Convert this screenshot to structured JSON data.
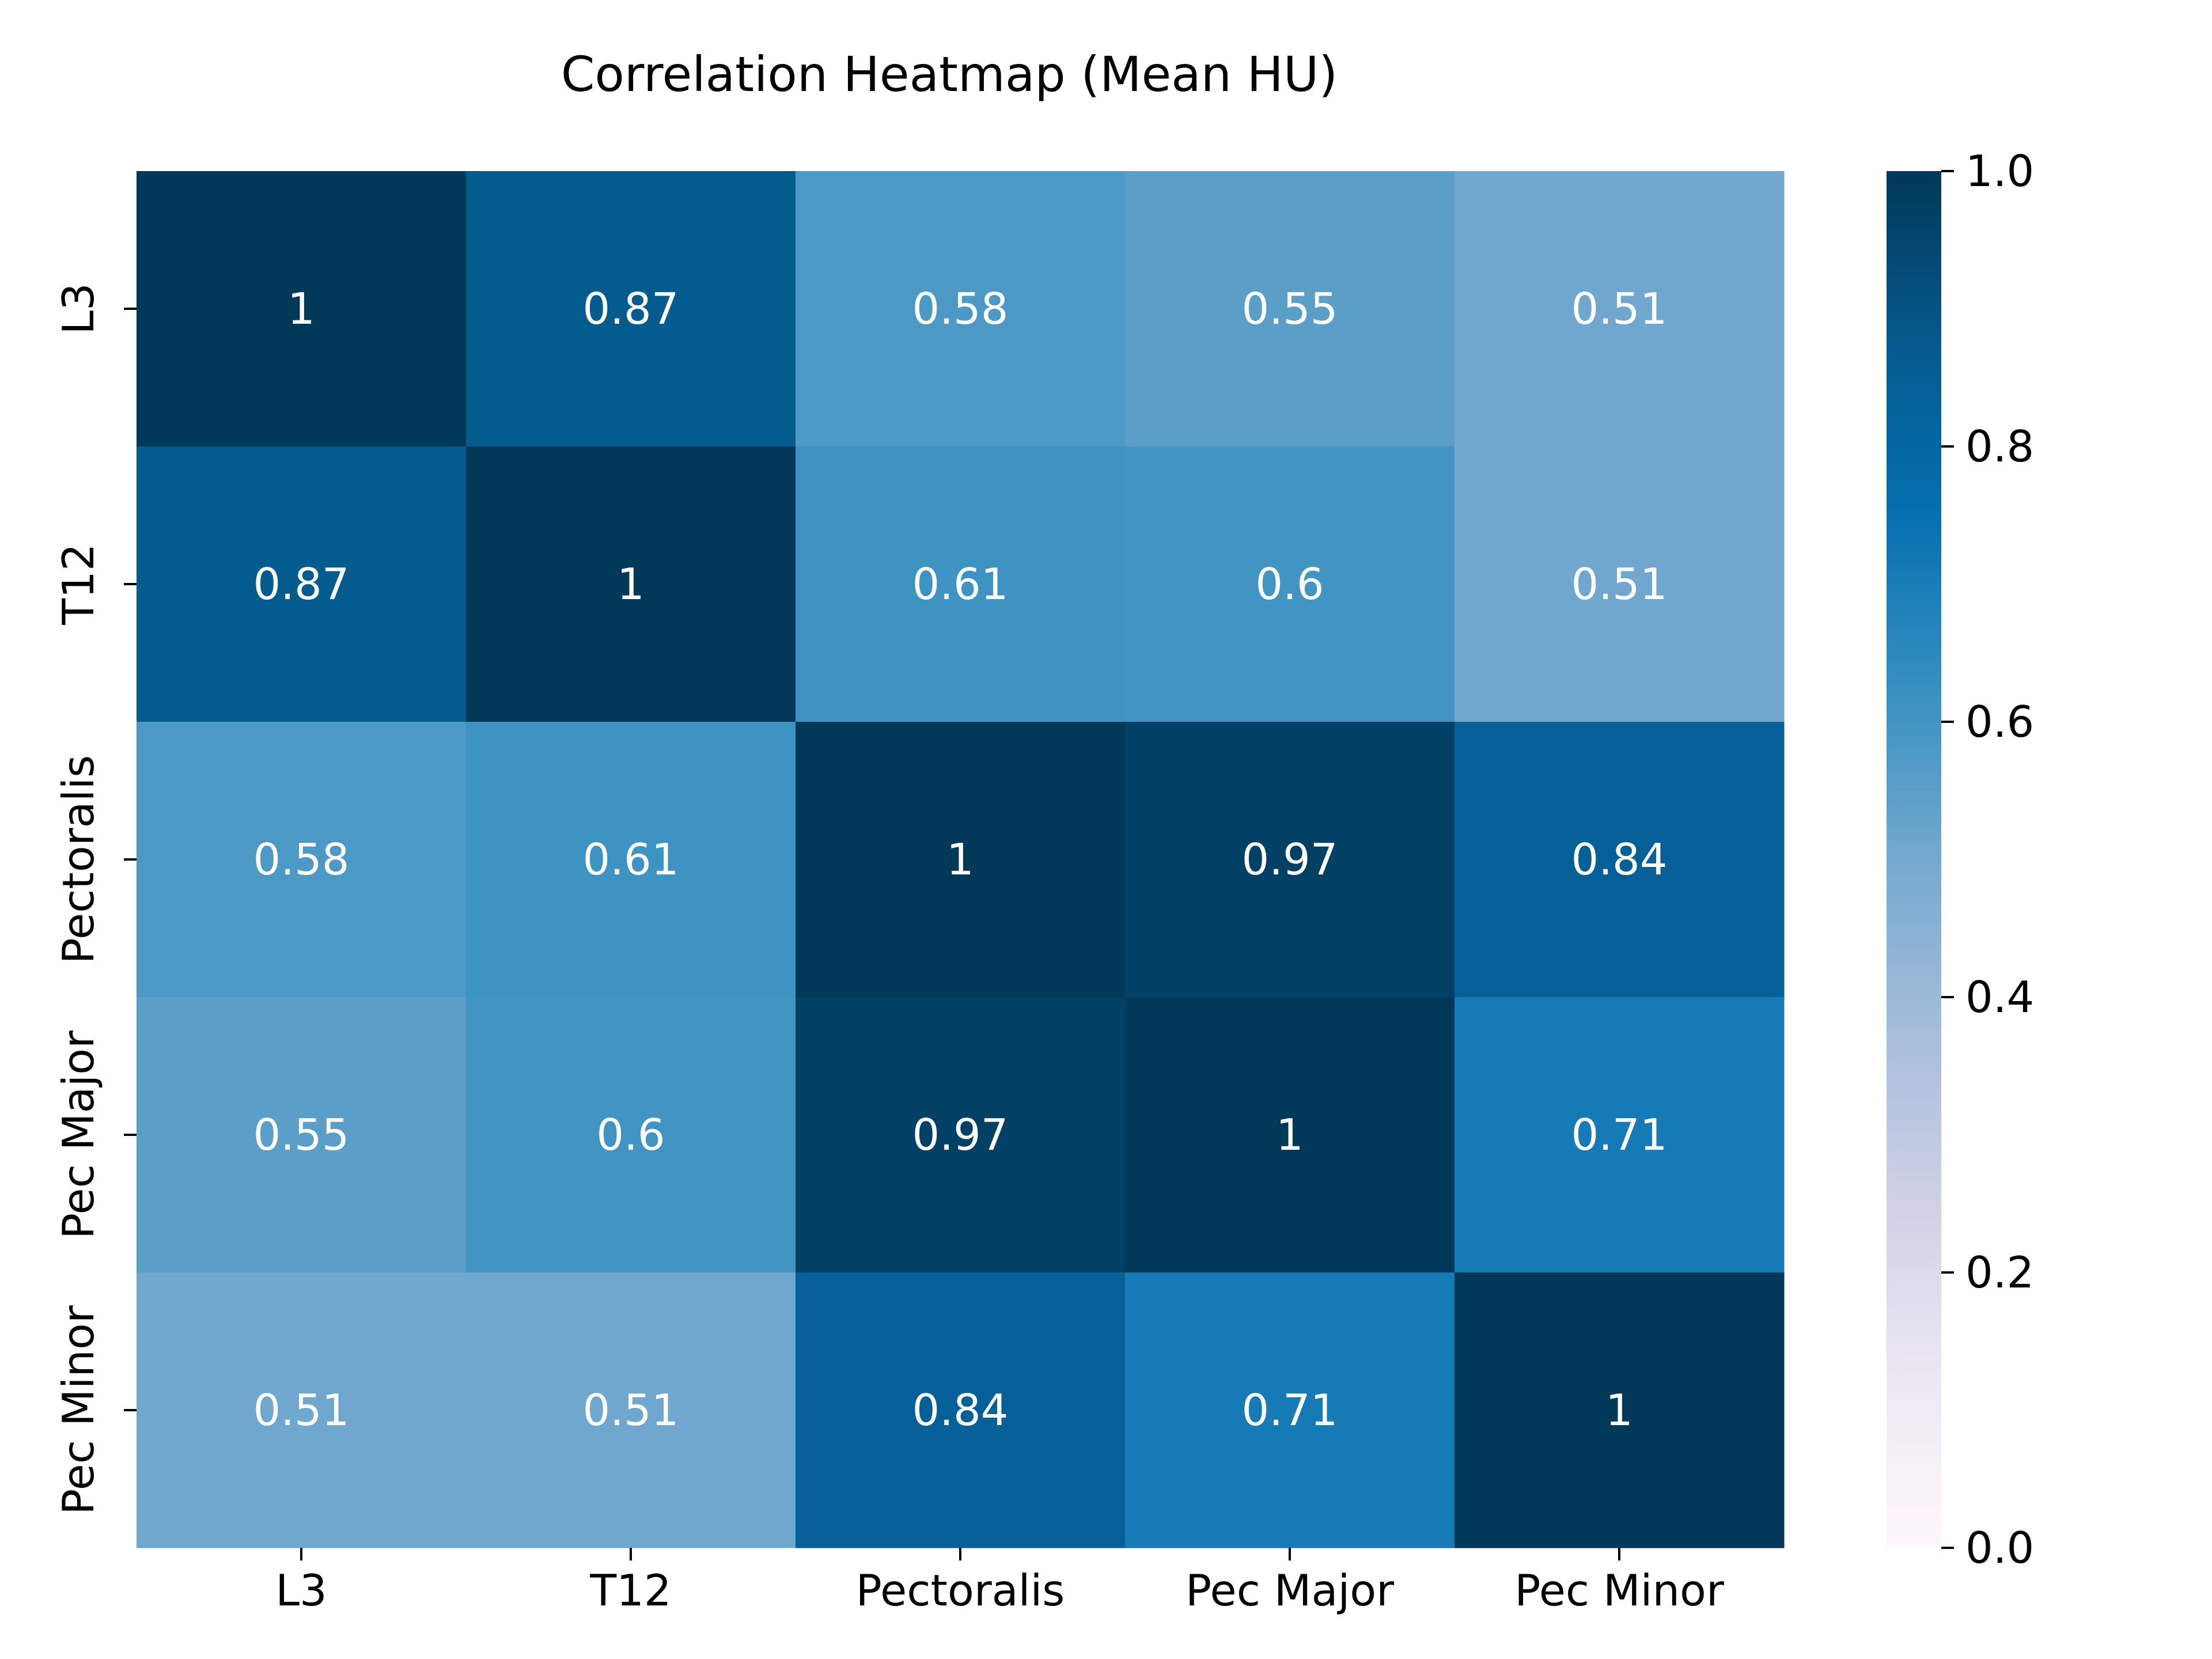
{
  "chart_data": {
    "type": "heatmap",
    "title": "Correlation Heatmap (Mean HU)",
    "xlabel": "",
    "ylabel": "",
    "x_categories": [
      "L3",
      "T12",
      "Pectoralis",
      "Pec Major",
      "Pec Minor"
    ],
    "y_categories": [
      "L3",
      "T12",
      "Pectoralis",
      "Pec Major",
      "Pec Minor"
    ],
    "values": [
      [
        1,
        0.87,
        0.58,
        0.55,
        0.51
      ],
      [
        0.87,
        1,
        0.61,
        0.6,
        0.51
      ],
      [
        0.58,
        0.61,
        1,
        0.97,
        0.84
      ],
      [
        0.55,
        0.6,
        0.97,
        1,
        0.71
      ],
      [
        0.51,
        0.51,
        0.84,
        0.71,
        1
      ]
    ],
    "value_labels": [
      [
        "1",
        "0.87",
        "0.58",
        "0.55",
        "0.51"
      ],
      [
        "0.87",
        "1",
        "0.61",
        "0.6",
        "0.51"
      ],
      [
        "0.58",
        "0.61",
        "1",
        "0.97",
        "0.84"
      ],
      [
        "0.55",
        "0.6",
        "0.97",
        "1",
        "0.71"
      ],
      [
        "0.51",
        "0.51",
        "0.84",
        "0.71",
        "1"
      ]
    ],
    "colorbar": {
      "range": [
        0.0,
        1.0
      ],
      "ticks": [
        "0.0",
        "0.2",
        "0.4",
        "0.6",
        "0.8",
        "1.0"
      ],
      "colormap": "PuBu",
      "colormap_stops": [
        "#fff7fb",
        "#ece7f2",
        "#d0d1e6",
        "#a6bddb",
        "#74a9cf",
        "#3690c0",
        "#0570b0",
        "#045a8d",
        "#023858"
      ]
    },
    "annotation_text_color": "#ffffff",
    "grid": false,
    "legend": "colorbar-right"
  }
}
